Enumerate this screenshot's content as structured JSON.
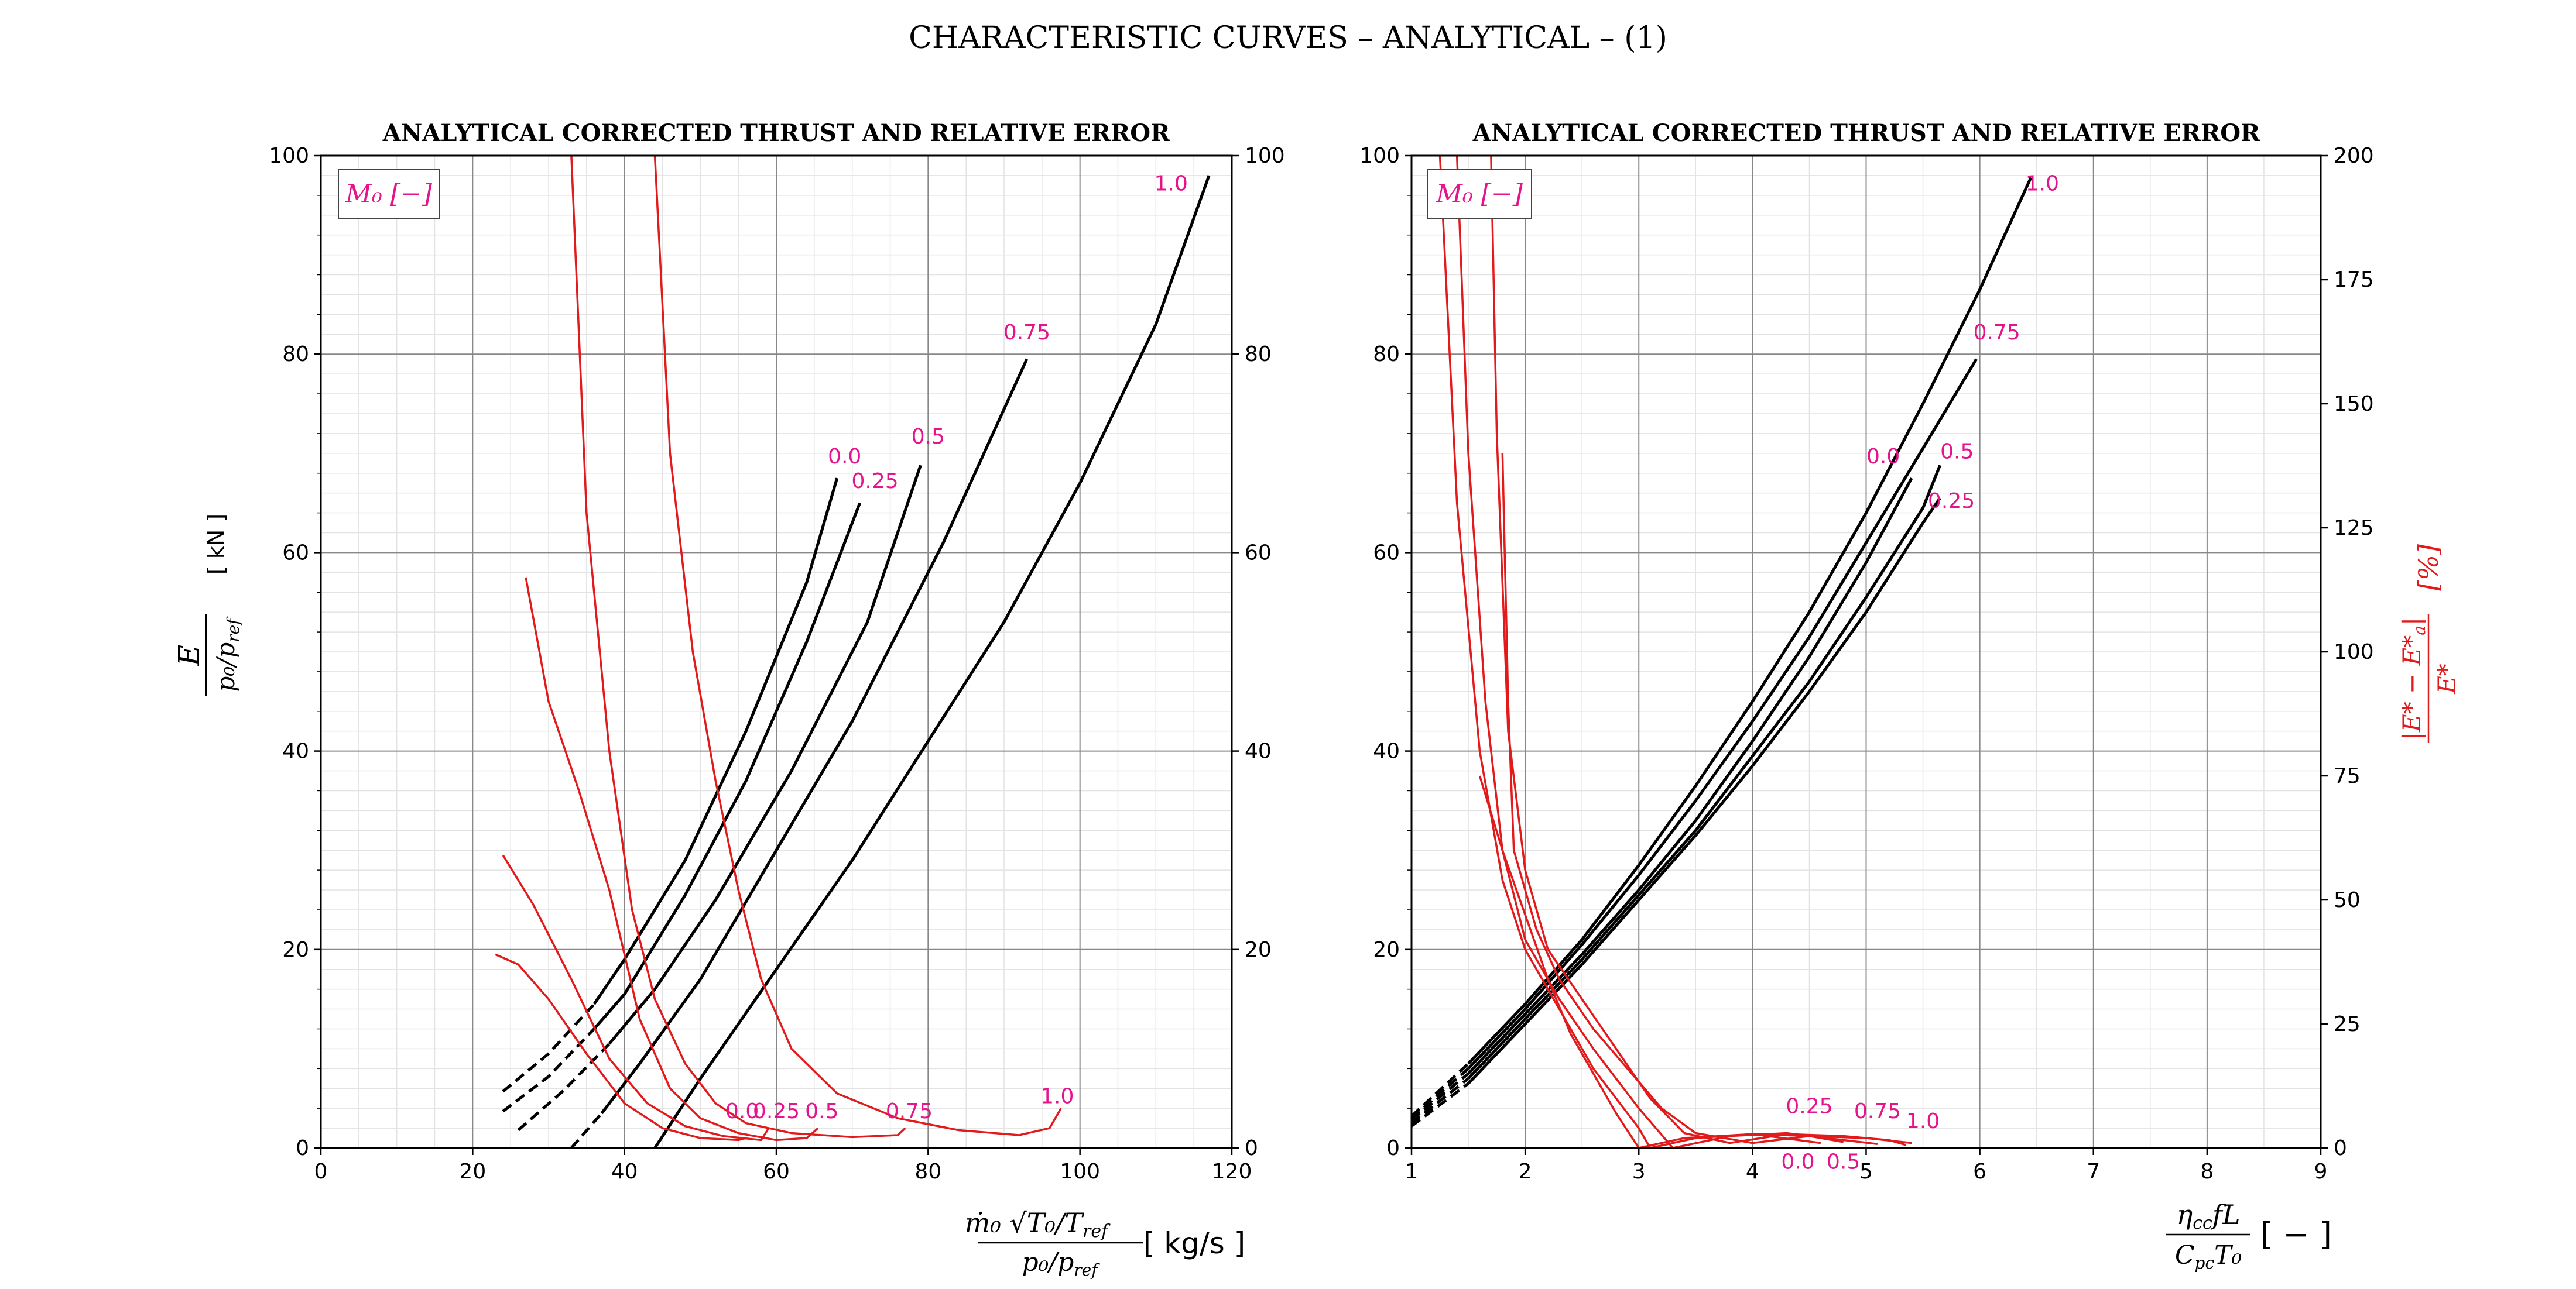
{
  "figure_title": "CHARACTERISTIC CURVES  – ANALYTICAL – (1)",
  "colors": {
    "thrust": "#000000",
    "error": "#e31a1c",
    "label": "#e6148c",
    "grid_major": "#888888",
    "grid_minor": "#e3e3e3"
  },
  "chart_data": [
    {
      "type": "line",
      "title": "ANALYTICAL CORRECTED THRUST AND RELATIVE ERROR",
      "legend_title": "M₀ [−]",
      "legend_position": "top-left",
      "grid": true,
      "xlabel": "ṁ₀ √(T₀/T_ref) / (p₀/p_ref)  [kg/s]",
      "ylabel": "E / (p₀/p_ref)  [kN]",
      "ylabel_right": "",
      "xlim": [
        0,
        120
      ],
      "ylim": [
        0,
        100
      ],
      "ylim_right": [
        0,
        100
      ],
      "xticks": [
        "0",
        "20",
        "40",
        "60",
        "80",
        "100",
        "120"
      ],
      "yticks": [
        "0",
        "20",
        "40",
        "60",
        "80",
        "100"
      ],
      "yticks_right": [
        "0",
        "20",
        "40",
        "60",
        "80",
        "100"
      ],
      "series": [
        {
          "name": "0.0",
          "role": "thrust",
          "dashed_until": 38,
          "x": [
            24,
            30,
            36,
            40,
            48,
            56,
            64,
            68
          ],
          "y": [
            5.7,
            9.5,
            14.5,
            19,
            29,
            42,
            57,
            67.5
          ],
          "label_pos": [
            69,
            69
          ]
        },
        {
          "name": "0.25",
          "role": "thrust",
          "dashed_until": 40,
          "x": [
            24,
            30,
            36,
            40,
            48,
            56,
            64,
            71
          ],
          "y": [
            3.7,
            7.2,
            12,
            15.5,
            25.5,
            37,
            51,
            65
          ],
          "label_pos": [
            73,
            66.5
          ]
        },
        {
          "name": "0.5",
          "role": "thrust",
          "dashed_until": 42,
          "x": [
            26,
            32,
            38,
            44,
            52,
            62,
            72,
            79
          ],
          "y": [
            1.8,
            5.8,
            10.5,
            16,
            25,
            38,
            53,
            68.8
          ],
          "label_pos": [
            80,
            71
          ]
        },
        {
          "name": "0.75",
          "role": "thrust",
          "dashed_until": 42,
          "x": [
            33,
            37,
            42,
            50,
            60,
            70,
            82,
            93
          ],
          "y": [
            0,
            3.5,
            8.5,
            17,
            30,
            43,
            61,
            79.5
          ],
          "label_pos": [
            93,
            81.5
          ]
        },
        {
          "name": "1.0",
          "role": "thrust",
          "dashed_until": 45,
          "x": [
            44,
            50,
            60,
            70,
            80,
            90,
            100,
            110,
            117
          ],
          "y": [
            0,
            7,
            18,
            29,
            41,
            53,
            67,
            83,
            98
          ],
          "label_pos": [
            112,
            96.5
          ]
        },
        {
          "name": "0.0",
          "role": "error",
          "x": [
            23,
            26,
            30,
            35,
            40,
            45,
            50,
            55,
            56
          ],
          "y": [
            19.5,
            18.5,
            15,
            9.5,
            4.5,
            2,
            1,
            0.8,
            1
          ],
          "label_pos": [
            55.5,
            3
          ]
        },
        {
          "name": "0.25",
          "role": "error",
          "x": [
            24,
            28,
            33,
            38,
            43,
            48,
            53,
            58,
            59
          ],
          "y": [
            29.5,
            24.5,
            17,
            9,
            4.5,
            2.2,
            1.2,
            0.8,
            2
          ],
          "label_pos": [
            60,
            3
          ]
        },
        {
          "name": "0.5",
          "role": "error",
          "x": [
            27,
            30,
            34,
            38,
            42,
            46,
            50,
            55,
            60,
            64,
            65.5
          ],
          "y": [
            57.5,
            45,
            36,
            26,
            13,
            6,
            3,
            1.5,
            0.8,
            1,
            2
          ],
          "label_pos": [
            66,
            3
          ]
        },
        {
          "name": "0.75",
          "role": "error",
          "x": [
            33,
            35,
            38,
            41,
            44,
            48,
            52,
            56,
            62,
            70,
            76,
            77
          ],
          "y": [
            100,
            64,
            40,
            24,
            15,
            8.5,
            4.5,
            2.5,
            1.5,
            1.1,
            1.3,
            2
          ],
          "label_pos": [
            77.5,
            3
          ]
        },
        {
          "name": "1.0",
          "role": "error",
          "x": [
            44,
            46,
            49,
            52,
            55,
            58,
            62,
            68,
            76,
            84,
            92,
            96,
            97.5
          ],
          "y": [
            100,
            70,
            50,
            37,
            26,
            17,
            10,
            5.5,
            3,
            1.8,
            1.3,
            2,
            4
          ],
          "label_pos": [
            97,
            4.5
          ]
        }
      ]
    },
    {
      "type": "line",
      "title": "ANALYTICAL CORRECTED THRUST AND RELATIVE ERROR",
      "legend_title": "M₀ [−]",
      "legend_position": "top-left",
      "grid": true,
      "xlabel": "η_cc f L / (C_pc T₀)  [−]",
      "ylabel": "",
      "ylabel_right": "|E* − E*_a| / E*  [%]",
      "xlim": [
        1,
        9
      ],
      "ylim": [
        0,
        100
      ],
      "ylim_right": [
        0,
        200
      ],
      "xticks": [
        "1",
        "2",
        "3",
        "4",
        "5",
        "6",
        "7",
        "8",
        "9"
      ],
      "yticks": [
        "0",
        "20",
        "40",
        "60",
        "80",
        "100"
      ],
      "yticks_right": [
        "0",
        "25",
        "50",
        "75",
        "100",
        "125",
        "150",
        "175",
        "200"
      ],
      "series": [
        {
          "name": "0.0",
          "role": "thrust",
          "dashed_until": 1.85,
          "x": [
            1,
            1.5,
            2,
            2.5,
            3,
            3.5,
            4,
            4.5,
            5,
            5.4
          ],
          "y": [
            2.8,
            7.5,
            13.5,
            19.5,
            26,
            33,
            41,
            49.5,
            59,
            67.5
          ],
          "label_pos": [
            5.15,
            69
          ]
        },
        {
          "name": "0.25",
          "role": "thrust",
          "dashed_until": 1.9,
          "x": [
            1,
            1.5,
            2,
            2.5,
            3,
            3.5,
            4,
            4.5,
            5,
            5.5,
            5.65
          ],
          "y": [
            2.2,
            6.5,
            12.5,
            18.5,
            25,
            31.5,
            38.5,
            46,
            54,
            63,
            65.5
          ],
          "label_pos": [
            5.75,
            64.5
          ]
        },
        {
          "name": "0.5",
          "role": "thrust",
          "dashed_until": 1.9,
          "x": [
            1,
            1.5,
            2,
            2.5,
            3,
            3.5,
            4,
            4.5,
            5,
            5.5,
            5.65
          ],
          "y": [
            2.5,
            7,
            13,
            19,
            25.5,
            32,
            39.5,
            47,
            55.5,
            64.5,
            68.8
          ],
          "label_pos": [
            5.8,
            69.5
          ]
        },
        {
          "name": "0.75",
          "role": "thrust",
          "dashed_until": 1.9,
          "x": [
            1,
            1.5,
            2,
            2.5,
            3,
            3.5,
            4,
            4.5,
            5,
            5.5,
            5.97
          ],
          "y": [
            3,
            8,
            14,
            20.5,
            27.5,
            35,
            43,
            51.5,
            61,
            70.5,
            79.5
          ],
          "label_pos": [
            6.15,
            81.5
          ]
        },
        {
          "name": "1.0",
          "role": "thrust",
          "dashed_until": 1.85,
          "x": [
            1,
            1.5,
            2,
            2.5,
            3,
            3.5,
            4,
            4.5,
            5,
            5.5,
            6,
            6.45
          ],
          "y": [
            3.2,
            8.5,
            14.5,
            21,
            28.5,
            36.5,
            45,
            54,
            64,
            75,
            86.5,
            97.8
          ],
          "label_pos": [
            6.55,
            96.5
          ]
        },
        {
          "name": "0.0",
          "role": "error",
          "x": [
            1.6,
            1.8,
            2,
            2.2,
            2.4,
            2.6,
            2.8,
            3,
            3.4,
            4,
            4.4,
            4.6
          ],
          "y": [
            37.5,
            30,
            23.5,
            17,
            11.5,
            7.5,
            3.5,
            0,
            1,
            1.4,
            0.8,
            0.5
          ],
          "label_pos": [
            4.4,
            -2.1
          ]
        },
        {
          "name": "0.25",
          "role": "error",
          "x": [
            1.25,
            1.4,
            1.6,
            1.8,
            2,
            2.3,
            2.6,
            3,
            3.1,
            3.5,
            4,
            4.5,
            4.8
          ],
          "y": [
            100,
            65,
            40,
            27,
            20,
            14,
            8,
            2,
            0,
            1,
            1.4,
            1.2,
            0.6
          ],
          "label_pos": [
            4.5,
            3.5
          ]
        },
        {
          "name": "0.5",
          "role": "error",
          "x": [
            1.4,
            1.5,
            1.65,
            1.8,
            2,
            2.3,
            2.6,
            3,
            3.3,
            3.8,
            4.3,
            4.8,
            5.1
          ],
          "y": [
            100,
            70,
            45,
            30,
            21,
            15,
            10,
            4,
            0,
            1.2,
            1.5,
            0.8,
            0.4
          ],
          "label_pos": [
            4.8,
            -2.1
          ]
        },
        {
          "name": "0.75",
          "role": "error",
          "x": [
            1.7,
            1.75,
            1.85,
            2,
            2.2,
            2.5,
            2.8,
            3.1,
            3.4,
            3.8,
            4.3,
            4.8,
            5.2,
            5.35
          ],
          "y": [
            100,
            72,
            42,
            28,
            20,
            15,
            10,
            5,
            1.5,
            0.5,
            1.4,
            1.2,
            0.8,
            0.3
          ],
          "label_pos": [
            5.1,
            3
          ]
        },
        {
          "name": "1.0",
          "role": "error",
          "x": [
            1.8,
            1.85,
            1.9,
            2.1,
            2.3,
            2.6,
            2.9,
            3.2,
            3.5,
            4,
            4.5,
            5,
            5.4
          ],
          "y": [
            70,
            45,
            30,
            22,
            17,
            12,
            8,
            4,
            1.5,
            0.5,
            1.2,
            1,
            0.5
          ],
          "label_pos": [
            5.5,
            2
          ]
        }
      ]
    }
  ]
}
